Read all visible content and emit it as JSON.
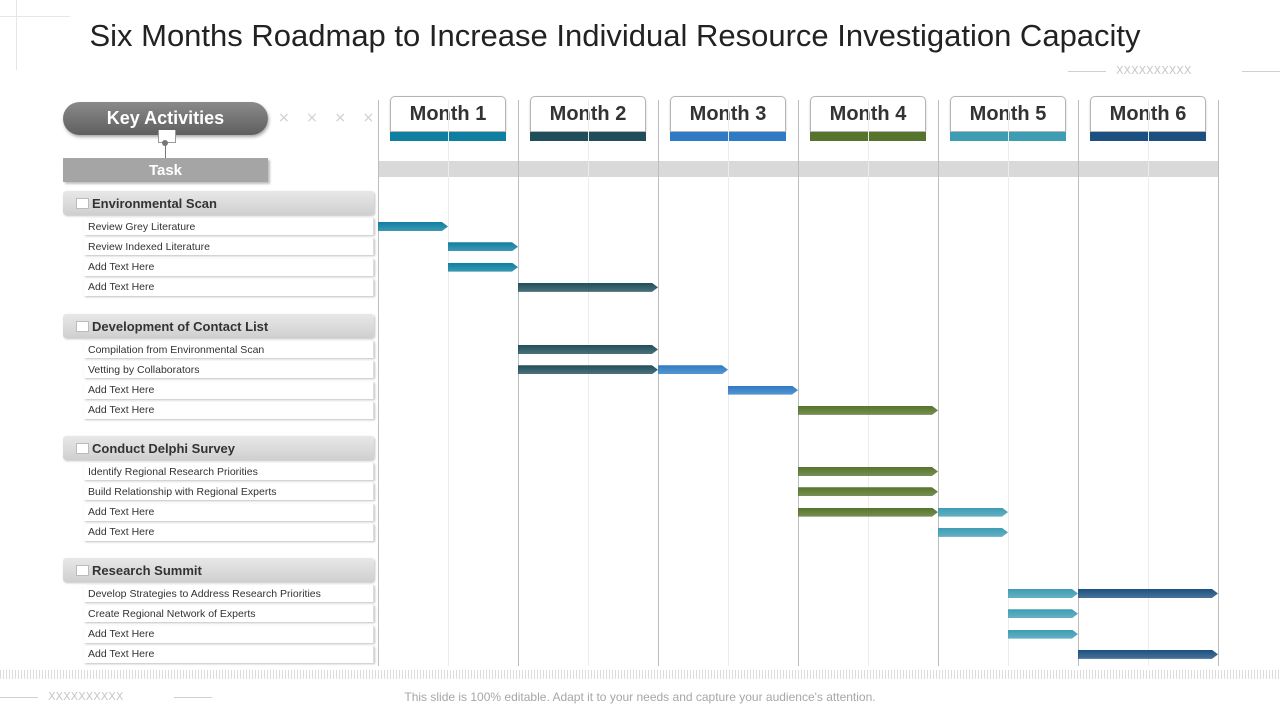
{
  "title": "Six Months Roadmap to Increase Individual Resource Investigation Capacity",
  "decor_text_top": "XXXXXXXXXX",
  "decor_text_bottom": "XXXXXXXXXX",
  "key_label": "Key Activities",
  "key_marks": "× × × × ×",
  "task_label": "Task",
  "months": [
    {
      "label": "Month 1",
      "color": "#0e7fa1"
    },
    {
      "label": "Month 2",
      "color": "#1f4e5a"
    },
    {
      "label": "Month 3",
      "color": "#2e7bc4"
    },
    {
      "label": "Month 4",
      "color": "#56742b"
    },
    {
      "label": "Month 5",
      "color": "#3e9db3"
    },
    {
      "label": "Month 6",
      "color": "#1b5080"
    }
  ],
  "groups": [
    {
      "title": "Environmental Scan",
      "tasks": [
        {
          "label": "Review Grey Literature",
          "bars": [
            {
              "start": 0,
              "end": 0.5,
              "color": "#0e7fa1"
            }
          ]
        },
        {
          "label": "Review Indexed Literature",
          "bars": [
            {
              "start": 0.5,
              "end": 1,
              "color": "#0e7fa1"
            }
          ]
        },
        {
          "label": "Add Text Here",
          "bars": [
            {
              "start": 0.5,
              "end": 1,
              "color": "#0e7fa1"
            }
          ]
        },
        {
          "label": "Add Text Here",
          "bars": [
            {
              "start": 1,
              "end": 2,
              "color": "#1f4e5a"
            }
          ]
        }
      ]
    },
    {
      "title": "Development of Contact List",
      "tasks": [
        {
          "label": "Compilation  from Environmental Scan",
          "bars": [
            {
              "start": 1,
              "end": 2,
              "color": "#1f4e5a"
            }
          ]
        },
        {
          "label": "Vetting by Collaborators",
          "bars": [
            {
              "start": 1,
              "end": 2,
              "color": "#1f4e5a"
            },
            {
              "start": 2,
              "end": 2.5,
              "color": "#2e7bc4"
            }
          ]
        },
        {
          "label": "Add Text Here",
          "bars": [
            {
              "start": 2.5,
              "end": 3,
              "color": "#2e7bc4"
            }
          ]
        },
        {
          "label": "Add Text Here",
          "bars": [
            {
              "start": 3,
              "end": 4,
              "color": "#56742b"
            }
          ]
        }
      ]
    },
    {
      "title": "Conduct Delphi Survey",
      "tasks": [
        {
          "label": "Identify Regional Research Priorities",
          "bars": [
            {
              "start": 3,
              "end": 4,
              "color": "#56742b"
            }
          ]
        },
        {
          "label": "Build Relationship  with Regional Experts",
          "bars": [
            {
              "start": 3,
              "end": 4,
              "color": "#56742b"
            }
          ]
        },
        {
          "label": "Add Text Here",
          "bars": [
            {
              "start": 3,
              "end": 4,
              "color": "#56742b"
            },
            {
              "start": 4,
              "end": 4.5,
              "color": "#3e9db3"
            }
          ]
        },
        {
          "label": "Add Text Here",
          "bars": [
            {
              "start": 4,
              "end": 4.5,
              "color": "#3e9db3"
            }
          ]
        }
      ]
    },
    {
      "title": "Research Summit",
      "tasks": [
        {
          "label": "Develop Strategies to Address Research Priorities",
          "bars": [
            {
              "start": 4.5,
              "end": 5,
              "color": "#3e9db3"
            },
            {
              "start": 5,
              "end": 6,
              "color": "#1b5080"
            }
          ]
        },
        {
          "label": "Create Regional Network of Experts",
          "bars": [
            {
              "start": 4.5,
              "end": 5,
              "color": "#3e9db3"
            }
          ]
        },
        {
          "label": "Add Text Here",
          "bars": [
            {
              "start": 4.5,
              "end": 5,
              "color": "#3e9db3"
            }
          ]
        },
        {
          "label": "Add Text Here",
          "bars": [
            {
              "start": 5,
              "end": 6,
              "color": "#1b5080"
            }
          ]
        }
      ]
    }
  ],
  "footer": "This slide is 100% editable. Adapt it to your needs and capture your audience's attention."
}
